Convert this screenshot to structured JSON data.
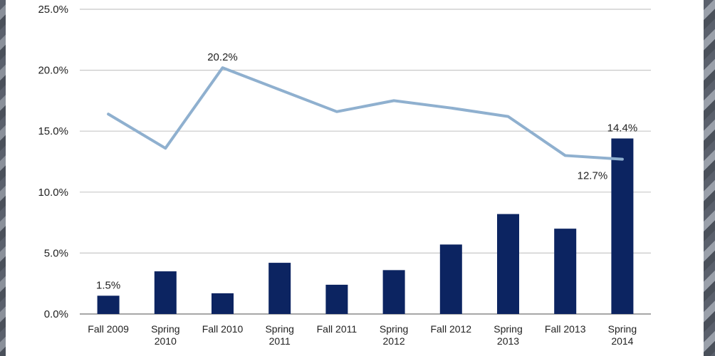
{
  "chart_data": {
    "type": "bar",
    "title": "",
    "xlabel": "",
    "ylabel": "",
    "ylim": [
      0,
      25
    ],
    "y_ticks": [
      "0.0%",
      "5.0%",
      "10.0%",
      "15.0%",
      "20.0%",
      "25.0%"
    ],
    "categories": [
      [
        "Fall 2009"
      ],
      [
        "Spring",
        "2010"
      ],
      [
        "Fall 2010"
      ],
      [
        "Spring",
        "2011"
      ],
      [
        "Fall 2011"
      ],
      [
        "Spring",
        "2012"
      ],
      [
        "Fall 2012"
      ],
      [
        "Spring",
        "2013"
      ],
      [
        "Fall 2013"
      ],
      [
        "Spring",
        "2014"
      ]
    ],
    "grid": true,
    "series": [
      {
        "type": "bar",
        "color": "#0c2461",
        "values": [
          1.5,
          3.5,
          1.7,
          4.2,
          2.4,
          3.6,
          5.7,
          8.2,
          7.0,
          14.4
        ]
      },
      {
        "type": "line",
        "color": "#8fb0cf",
        "values": [
          16.4,
          13.6,
          20.2,
          18.4,
          16.6,
          17.5,
          16.9,
          16.2,
          13.0,
          12.7
        ]
      }
    ],
    "data_labels": [
      {
        "series": 0,
        "index": 0,
        "text": "1.5%"
      },
      {
        "series": 1,
        "index": 2,
        "text": "20.2%"
      },
      {
        "series": 0,
        "index": 9,
        "text": "14.4%"
      },
      {
        "series": 1,
        "index": 9,
        "text": "12.7%"
      }
    ]
  }
}
